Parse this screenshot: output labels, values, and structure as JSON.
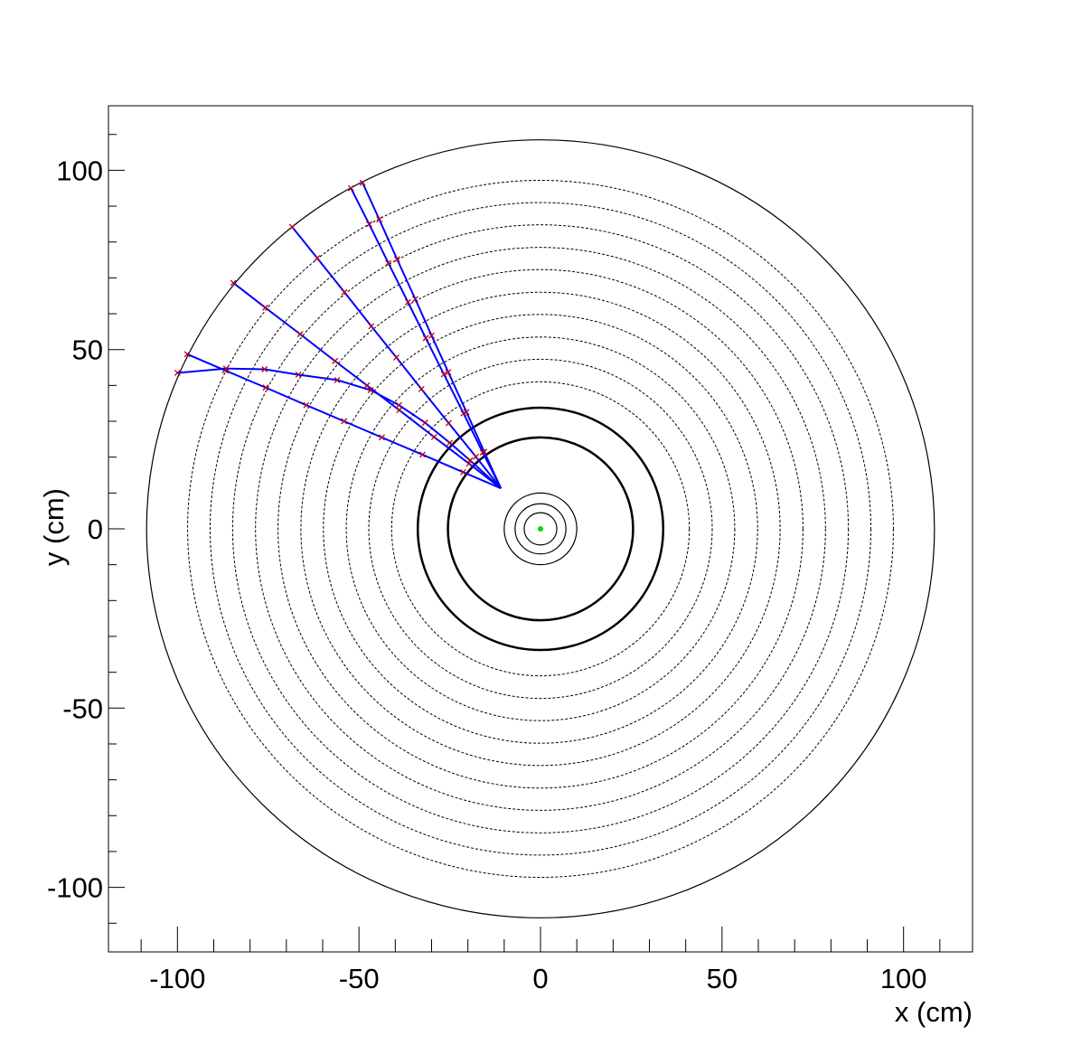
{
  "chart_data": {
    "type": "line",
    "xlabel": "x (cm)",
    "ylabel": "y (cm)",
    "xlim": [
      -119,
      119
    ],
    "ylim": [
      -118,
      118
    ],
    "xticks": [
      -100,
      -50,
      0,
      50,
      100
    ],
    "yticks": [
      -100,
      -50,
      0,
      50,
      100
    ],
    "xminorticks": [
      -110,
      -90,
      -80,
      -70,
      -60,
      -40,
      -30,
      -20,
      -10,
      10,
      20,
      30,
      40,
      60,
      70,
      80,
      90,
      110
    ],
    "yminorticks": [
      -110,
      -90,
      -80,
      -70,
      -60,
      -40,
      -30,
      -20,
      -10,
      10,
      20,
      30,
      40,
      60,
      70,
      80,
      90,
      110
    ],
    "track_color": "#0000ff",
    "hit_color": "#b00020",
    "detector": {
      "solid_radii": [
        108.5,
        10,
        7,
        4.5
      ],
      "thick_radii": [
        25.5,
        33.8
      ],
      "dashed_radii": [
        41,
        47.3,
        53.5,
        59.8,
        66,
        72.3,
        78.5,
        84.8,
        91,
        97.2
      ]
    },
    "vertex": {
      "x": 0,
      "y": 0,
      "color": "#00dd00"
    },
    "series": [
      {
        "x": [
          -10.9,
          -15.5,
          -20.4,
          -25.4,
          -30,
          -34.5,
          -39.5,
          -44.4,
          -49
        ],
        "y": [
          11.3,
          21.5,
          32.6,
          43.7,
          53.9,
          64.1,
          75.2,
          86.3,
          96.5
        ]
      },
      {
        "x": [
          -10.9,
          -15.9,
          -21.2,
          -26.6,
          -31.6,
          -36.5,
          -41.9,
          -47.2,
          -52.2
        ],
        "y": [
          11.3,
          21.3,
          32.2,
          43.1,
          53.2,
          63.2,
          74.1,
          85,
          95
        ]
      },
      {
        "x": [
          -10.9,
          -17.8,
          -25.3,
          -32.8,
          -39.7,
          -46.6,
          -54,
          -61.5,
          -68.4
        ],
        "y": [
          11.3,
          20.1,
          29.5,
          39,
          47.8,
          56.5,
          66,
          75.5,
          84.2
        ]
      },
      {
        "x": [
          -10.9,
          -19.7,
          -29.3,
          -38.9,
          -47.8,
          -56.6,
          -66.2,
          -75.8,
          -84.6
        ],
        "y": [
          11.3,
          18.2,
          25.6,
          33.1,
          40,
          46.8,
          54.3,
          61.7,
          68.6
        ]
      },
      {
        "x": [
          -10.9,
          -21.3,
          -32.5,
          -43.7,
          -54.1,
          -64.5,
          -75.7,
          -86.9,
          -97.3
        ],
        "y": [
          11.3,
          15.8,
          20.7,
          25.5,
          30,
          34.5,
          39.4,
          44.2,
          48.7
        ]
      },
      {
        "x": [
          -10.9,
          -19.4,
          -25,
          -31.8,
          -39,
          -46.8,
          -56,
          -66.7,
          -76,
          -86.6,
          -100
        ],
        "y": [
          11.3,
          19.1,
          24,
          29.6,
          34.5,
          38.7,
          41.5,
          43,
          44.5,
          44.7,
          43.5
        ]
      }
    ]
  }
}
